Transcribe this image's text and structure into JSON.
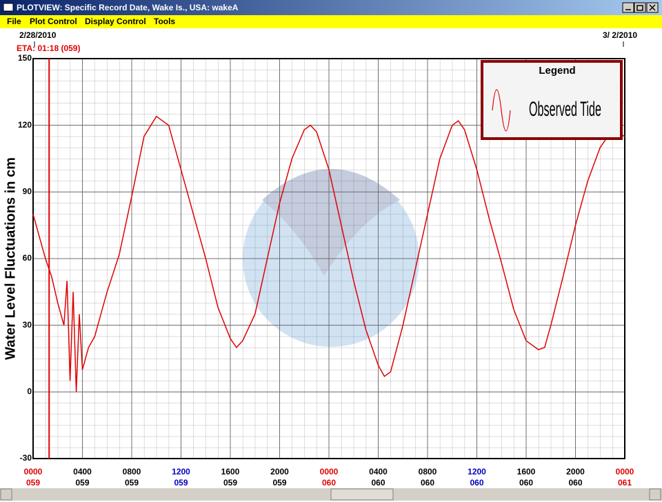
{
  "window": {
    "title": "PLOTVIEW: Specific Record Date, Wake Is., USA: wakeA",
    "menu": [
      "File",
      "Plot Control",
      "Display Control",
      "Tools"
    ]
  },
  "chart_data": {
    "type": "line",
    "ylabel": "Water Level Fluctuations in cm",
    "start_date": "2/28/2010",
    "end_date": "3/ 2/2010",
    "eta": {
      "label": "ETA: 01:18 (059)",
      "x": 1.3,
      "color": "#e00000"
    },
    "legend_title": "Legend",
    "x": [
      0,
      0.5,
      1,
      1.5,
      2,
      2.5,
      2.75,
      3,
      3.25,
      3.5,
      3.75,
      4,
      4.5,
      5,
      5.5,
      6,
      7,
      8,
      9,
      10,
      11,
      12,
      13,
      14,
      15,
      16,
      16.5,
      17,
      18,
      19,
      20,
      21,
      22,
      22.5,
      23,
      24,
      25,
      26,
      27,
      28,
      28.5,
      29,
      30,
      31,
      32,
      33,
      34,
      34.5,
      35,
      36,
      37,
      38,
      39,
      40,
      41,
      41.5,
      42,
      43,
      44,
      45,
      46,
      47,
      48
    ],
    "series": [
      {
        "name": "Observed Tide",
        "color": "#e00000",
        "values": [
          80,
          70,
          60,
          52,
          40,
          30,
          50,
          5,
          45,
          0,
          35,
          10,
          20,
          25,
          35,
          45,
          62,
          88,
          115,
          124,
          120,
          100,
          80,
          60,
          38,
          24,
          20,
          23,
          35,
          60,
          85,
          105,
          118,
          120,
          117,
          100,
          75,
          50,
          28,
          12,
          7,
          9,
          30,
          55,
          80,
          105,
          120,
          122,
          118,
          100,
          78,
          58,
          37,
          23,
          19,
          20,
          30,
          52,
          75,
          95,
          110,
          118,
          115
        ]
      }
    ],
    "xlim": [
      0,
      48
    ],
    "xticks": [
      {
        "value": 0,
        "label": "0000"
      },
      {
        "value": 4,
        "label": "0400"
      },
      {
        "value": 8,
        "label": "0800"
      },
      {
        "value": 12,
        "label": "1200"
      },
      {
        "value": 16,
        "label": "1600"
      },
      {
        "value": 20,
        "label": "2000"
      },
      {
        "value": 24,
        "label": "0000"
      },
      {
        "value": 28,
        "label": "0400"
      },
      {
        "value": 32,
        "label": "0800"
      },
      {
        "value": 36,
        "label": "1200"
      },
      {
        "value": 40,
        "label": "1600"
      },
      {
        "value": 44,
        "label": "2000"
      },
      {
        "value": 48,
        "label": "0000"
      }
    ],
    "xtick_days": [
      "059",
      "059",
      "059",
      "059",
      "059",
      "059",
      "060",
      "060",
      "060",
      "060",
      "060",
      "060",
      "061"
    ],
    "xtick_colors": [
      "#e00000",
      "#000",
      "#000",
      "#0000c0",
      "#000",
      "#000",
      "#e00000",
      "#000",
      "#000",
      "#0000c0",
      "#000",
      "#000",
      "#e00000"
    ],
    "ylim": [
      -30,
      150
    ],
    "yticks": [
      -30,
      0,
      30,
      60,
      90,
      120,
      150
    ],
    "grid": true
  }
}
